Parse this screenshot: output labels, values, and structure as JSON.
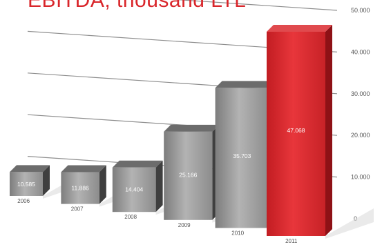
{
  "chart_data": {
    "type": "bar",
    "title": "EBITDA, thousand LTL",
    "categories": [
      "2006",
      "2007",
      "2008",
      "2009",
      "2010",
      "2011"
    ],
    "values": [
      10585,
      11886,
      14404,
      25166,
      35703,
      47068
    ],
    "value_labels": [
      "10.585",
      "11.886",
      "14.404",
      "25.166",
      "35.703",
      "47.068"
    ],
    "y_ticks": [
      "0",
      "10.000",
      "20.000",
      "30.000",
      "40.000",
      "50.000"
    ],
    "ylim": [
      0,
      50000
    ],
    "grid": true,
    "bar_color": "#9a9a9a",
    "highlight_color": "#d8262c",
    "highlight_category": "2011"
  }
}
